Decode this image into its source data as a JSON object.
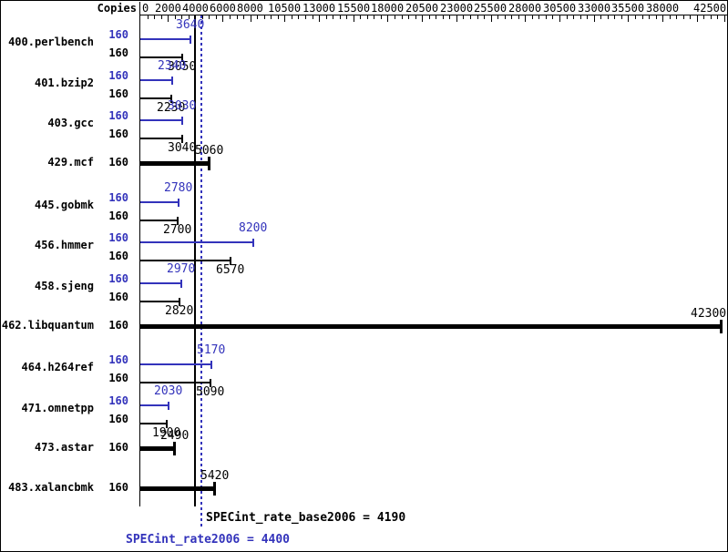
{
  "header": {
    "copies_label": "Copies"
  },
  "colors": {
    "peak_blue": "#3333bb",
    "base_black": "#000000"
  },
  "chart_data": {
    "type": "bar",
    "orientation": "horizontal",
    "axis": {
      "min": 0,
      "max": 42500,
      "minor_step": 500,
      "major_ticks": [
        2000,
        4000,
        6000,
        8000,
        10500,
        13000,
        15500,
        18000,
        20500,
        23000,
        25500,
        28000,
        30500,
        33000,
        35500,
        38000,
        40500,
        42500
      ],
      "labels": [
        0,
        2000,
        4000,
        6000,
        8000,
        10500,
        13000,
        15500,
        18000,
        20500,
        23000,
        25500,
        28000,
        30500,
        33000,
        35500,
        38000,
        42500
      ]
    },
    "benchmarks": [
      {
        "name": "400.perlbench",
        "copies": "160",
        "peak": 3640,
        "base": 3050
      },
      {
        "name": "401.bzip2",
        "copies": "160",
        "peak": 2340,
        "base": 2230
      },
      {
        "name": "403.gcc",
        "copies": "160",
        "peak": 3030,
        "base": 3040
      },
      {
        "name": "429.mcf",
        "copies": "160",
        "single": 5060
      },
      {
        "name": "445.gobmk",
        "copies": "160",
        "peak": 2780,
        "base": 2700
      },
      {
        "name": "456.hmmer",
        "copies": "160",
        "peak": 8200,
        "base": 6570
      },
      {
        "name": "458.sjeng",
        "copies": "160",
        "peak": 2970,
        "base": 2820
      },
      {
        "name": "462.libquantum",
        "copies": "160",
        "single": 42300
      },
      {
        "name": "464.h264ref",
        "copies": "160",
        "peak": 5170,
        "base": 5090
      },
      {
        "name": "471.omnetpp",
        "copies": "160",
        "peak": 2030,
        "base": 1900
      },
      {
        "name": "473.astar",
        "copies": "160",
        "single": 2490
      },
      {
        "name": "483.xalancbmk",
        "copies": "160",
        "single": 5420
      }
    ],
    "reference_lines": [
      {
        "name": "base",
        "value": 4190,
        "style": "solid",
        "color": "#000000"
      },
      {
        "name": "peak",
        "value": 4400,
        "style": "dotted",
        "color": "#3333bb"
      }
    ],
    "summary": {
      "base_text": "SPECint_rate_base2006 = 4190",
      "peak_text": "SPECint_rate2006 = 4400"
    }
  }
}
